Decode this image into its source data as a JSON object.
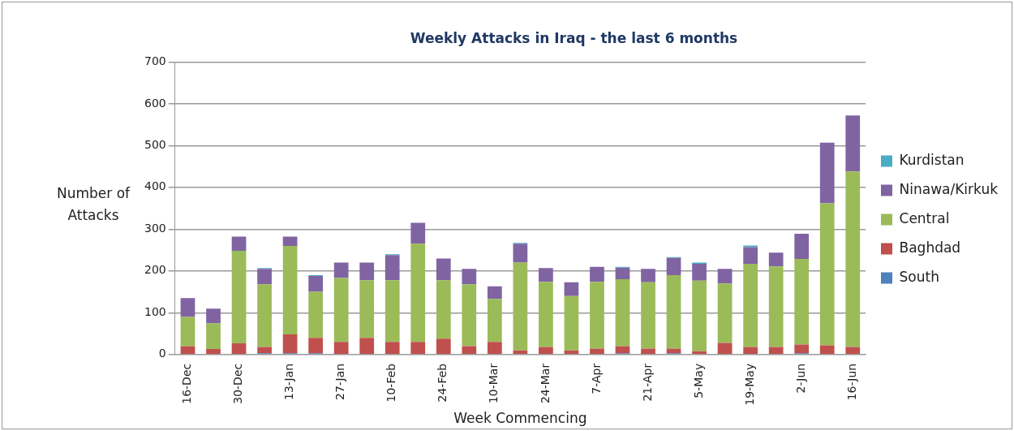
{
  "chart_data": {
    "type": "bar",
    "title": "Weekly Attacks in Iraq - the last 6 months",
    "xlabel": "Week Commencing",
    "ylabel": "Number of Attacks",
    "categories": [
      "16-Dec",
      null,
      "30-Dec",
      null,
      "13-Jan",
      null,
      "27-Jan",
      null,
      "10-Feb",
      null,
      "24-Feb",
      null,
      "10-Mar",
      null,
      "24-Mar",
      null,
      "7-Apr",
      null,
      "21-Apr",
      null,
      "5-May",
      null,
      "19-May",
      null,
      "2-Jun",
      null,
      "16-Jun"
    ],
    "stacked": true,
    "ylim": [
      0,
      700
    ],
    "yticks": [
      0,
      100,
      200,
      300,
      400,
      500,
      600,
      700
    ],
    "grid": "y",
    "legend": "right",
    "series": [
      {
        "name": "South",
        "color": "#4f81bd",
        "values": [
          0,
          0,
          0,
          3,
          3,
          3,
          0,
          0,
          0,
          0,
          0,
          0,
          0,
          0,
          0,
          0,
          0,
          3,
          0,
          3,
          0,
          0,
          0,
          0,
          3,
          0,
          0
        ]
      },
      {
        "name": "Baghdad",
        "color": "#c0504d",
        "values": [
          20,
          13,
          27,
          15,
          45,
          37,
          30,
          40,
          30,
          30,
          38,
          20,
          30,
          10,
          18,
          10,
          14,
          17,
          14,
          11,
          8,
          28,
          18,
          18,
          21,
          22,
          18
        ]
      },
      {
        "name": "Central",
        "color": "#9bbb59",
        "values": [
          70,
          62,
          221,
          150,
          212,
          110,
          153,
          138,
          148,
          235,
          140,
          148,
          103,
          210,
          156,
          130,
          160,
          160,
          159,
          176,
          169,
          142,
          199,
          193,
          205,
          340,
          420
        ]
      },
      {
        "name": "Ninawa/Kirkuk",
        "color": "#8064a2",
        "values": [
          45,
          35,
          34,
          37,
          22,
          38,
          37,
          42,
          60,
          50,
          52,
          37,
          30,
          45,
          33,
          33,
          36,
          28,
          32,
          41,
          40,
          35,
          40,
          33,
          60,
          145,
          134
        ]
      },
      {
        "name": "Kurdistan",
        "color": "#4bacc6",
        "values": [
          0,
          0,
          0,
          2,
          0,
          2,
          0,
          0,
          2,
          0,
          0,
          0,
          0,
          2,
          0,
          0,
          0,
          2,
          0,
          2,
          3,
          0,
          4,
          0,
          0,
          0,
          0
        ]
      }
    ]
  }
}
